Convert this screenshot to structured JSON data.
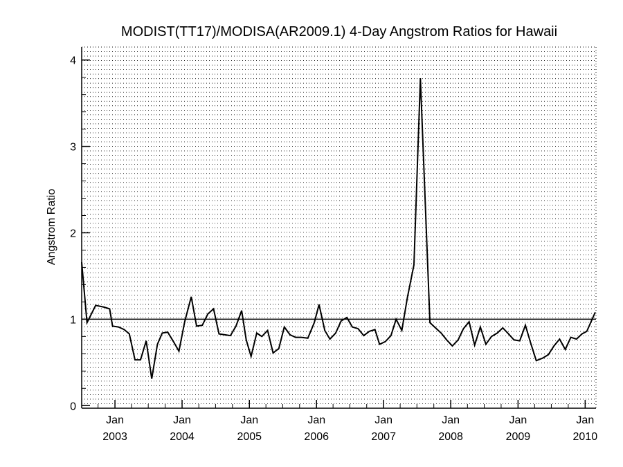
{
  "chart_data": {
    "type": "line",
    "title": "MODIST(TT17)/MODISA(AR2009.1) 4-Day Angstrom Ratios for Hawaii",
    "xlabel": "",
    "ylabel": "Angstrom Ratio",
    "xlim": [
      "2002-07-04",
      "2010-03-01"
    ],
    "ylim": [
      -0.03,
      4.15
    ],
    "yticks": [
      0,
      1,
      2,
      3,
      4
    ],
    "xticks": [
      {
        "date": "2003-01-01",
        "month": "Jan",
        "year": "2003"
      },
      {
        "date": "2004-01-01",
        "month": "Jan",
        "year": "2004"
      },
      {
        "date": "2005-01-01",
        "month": "Jan",
        "year": "2005"
      },
      {
        "date": "2006-01-01",
        "month": "Jan",
        "year": "2006"
      },
      {
        "date": "2007-01-01",
        "month": "Jan",
        "year": "2007"
      },
      {
        "date": "2008-01-01",
        "month": "Jan",
        "year": "2008"
      },
      {
        "date": "2009-01-01",
        "month": "Jan",
        "year": "2009"
      },
      {
        "date": "2010-01-01",
        "month": "Jan",
        "year": "2010"
      }
    ],
    "reference_line": 1,
    "grid": "dotted horizontal",
    "line_color": "#000000",
    "series": [
      {
        "name": "",
        "points": [
          [
            "2002-07-04",
            1.66
          ],
          [
            "2002-08-02",
            0.96
          ],
          [
            "2002-09-18",
            1.16
          ],
          [
            "2002-11-02",
            1.14
          ],
          [
            "2002-12-03",
            1.12
          ],
          [
            "2002-12-19",
            0.92
          ],
          [
            "2003-01-20",
            0.91
          ],
          [
            "2003-02-20",
            0.88
          ],
          [
            "2003-03-20",
            0.83
          ],
          [
            "2003-04-20",
            0.53
          ],
          [
            "2003-05-20",
            0.53
          ],
          [
            "2003-06-20",
            0.75
          ],
          [
            "2003-07-20",
            0.31
          ],
          [
            "2003-08-20",
            0.71
          ],
          [
            "2003-09-15",
            0.84
          ],
          [
            "2003-10-15",
            0.85
          ],
          [
            "2003-11-15",
            0.74
          ],
          [
            "2003-12-15",
            0.63
          ],
          [
            "2004-01-15",
            0.97
          ],
          [
            "2004-02-20",
            1.26
          ],
          [
            "2004-03-20",
            0.92
          ],
          [
            "2004-04-20",
            0.93
          ],
          [
            "2004-05-20",
            1.06
          ],
          [
            "2004-06-20",
            1.12
          ],
          [
            "2004-07-20",
            0.83
          ],
          [
            "2004-08-20",
            0.82
          ],
          [
            "2004-09-20",
            0.81
          ],
          [
            "2004-10-20",
            0.92
          ],
          [
            "2004-11-20",
            1.1
          ],
          [
            "2004-12-15",
            0.76
          ],
          [
            "2005-01-10",
            0.57
          ],
          [
            "2005-02-10",
            0.84
          ],
          [
            "2005-03-10",
            0.8
          ],
          [
            "2005-04-10",
            0.87
          ],
          [
            "2005-05-10",
            0.61
          ],
          [
            "2005-06-10",
            0.66
          ],
          [
            "2005-07-10",
            0.91
          ],
          [
            "2005-08-10",
            0.82
          ],
          [
            "2005-09-10",
            0.79
          ],
          [
            "2005-10-10",
            0.79
          ],
          [
            "2005-11-15",
            0.78
          ],
          [
            "2005-12-20",
            0.96
          ],
          [
            "2006-01-15",
            1.17
          ],
          [
            "2006-02-15",
            0.87
          ],
          [
            "2006-03-15",
            0.77
          ],
          [
            "2006-04-15",
            0.84
          ],
          [
            "2006-05-15",
            0.98
          ],
          [
            "2006-06-15",
            1.02
          ],
          [
            "2006-07-15",
            0.91
          ],
          [
            "2006-08-15",
            0.89
          ],
          [
            "2006-09-15",
            0.81
          ],
          [
            "2006-10-15",
            0.86
          ],
          [
            "2006-11-15",
            0.88
          ],
          [
            "2006-12-10",
            0.71
          ],
          [
            "2007-01-10",
            0.74
          ],
          [
            "2007-02-10",
            0.81
          ],
          [
            "2007-03-10",
            1.0
          ],
          [
            "2007-04-10",
            0.87
          ],
          [
            "2007-05-10",
            1.25
          ],
          [
            "2007-06-15",
            1.63
          ],
          [
            "2007-07-20",
            3.79
          ],
          [
            "2007-09-10",
            0.96
          ],
          [
            "2007-10-10",
            0.9
          ],
          [
            "2007-11-10",
            0.84
          ],
          [
            "2007-12-10",
            0.76
          ],
          [
            "2008-01-10",
            0.69
          ],
          [
            "2008-02-10",
            0.76
          ],
          [
            "2008-03-10",
            0.89
          ],
          [
            "2008-04-10",
            0.97
          ],
          [
            "2008-05-10",
            0.7
          ],
          [
            "2008-06-10",
            0.91
          ],
          [
            "2008-07-10",
            0.71
          ],
          [
            "2008-08-10",
            0.8
          ],
          [
            "2008-09-10",
            0.84
          ],
          [
            "2008-10-10",
            0.9
          ],
          [
            "2008-11-10",
            0.83
          ],
          [
            "2008-12-10",
            0.76
          ],
          [
            "2009-01-10",
            0.75
          ],
          [
            "2009-02-10",
            0.93
          ],
          [
            "2009-03-10",
            0.73
          ],
          [
            "2009-04-10",
            0.52
          ],
          [
            "2009-05-15",
            0.55
          ],
          [
            "2009-06-15",
            0.59
          ],
          [
            "2009-07-15",
            0.69
          ],
          [
            "2009-08-15",
            0.77
          ],
          [
            "2009-09-15",
            0.65
          ],
          [
            "2009-10-15",
            0.79
          ],
          [
            "2009-11-15",
            0.77
          ],
          [
            "2009-12-15",
            0.83
          ],
          [
            "2010-01-10",
            0.86
          ],
          [
            "2010-02-25",
            1.08
          ]
        ]
      }
    ]
  }
}
